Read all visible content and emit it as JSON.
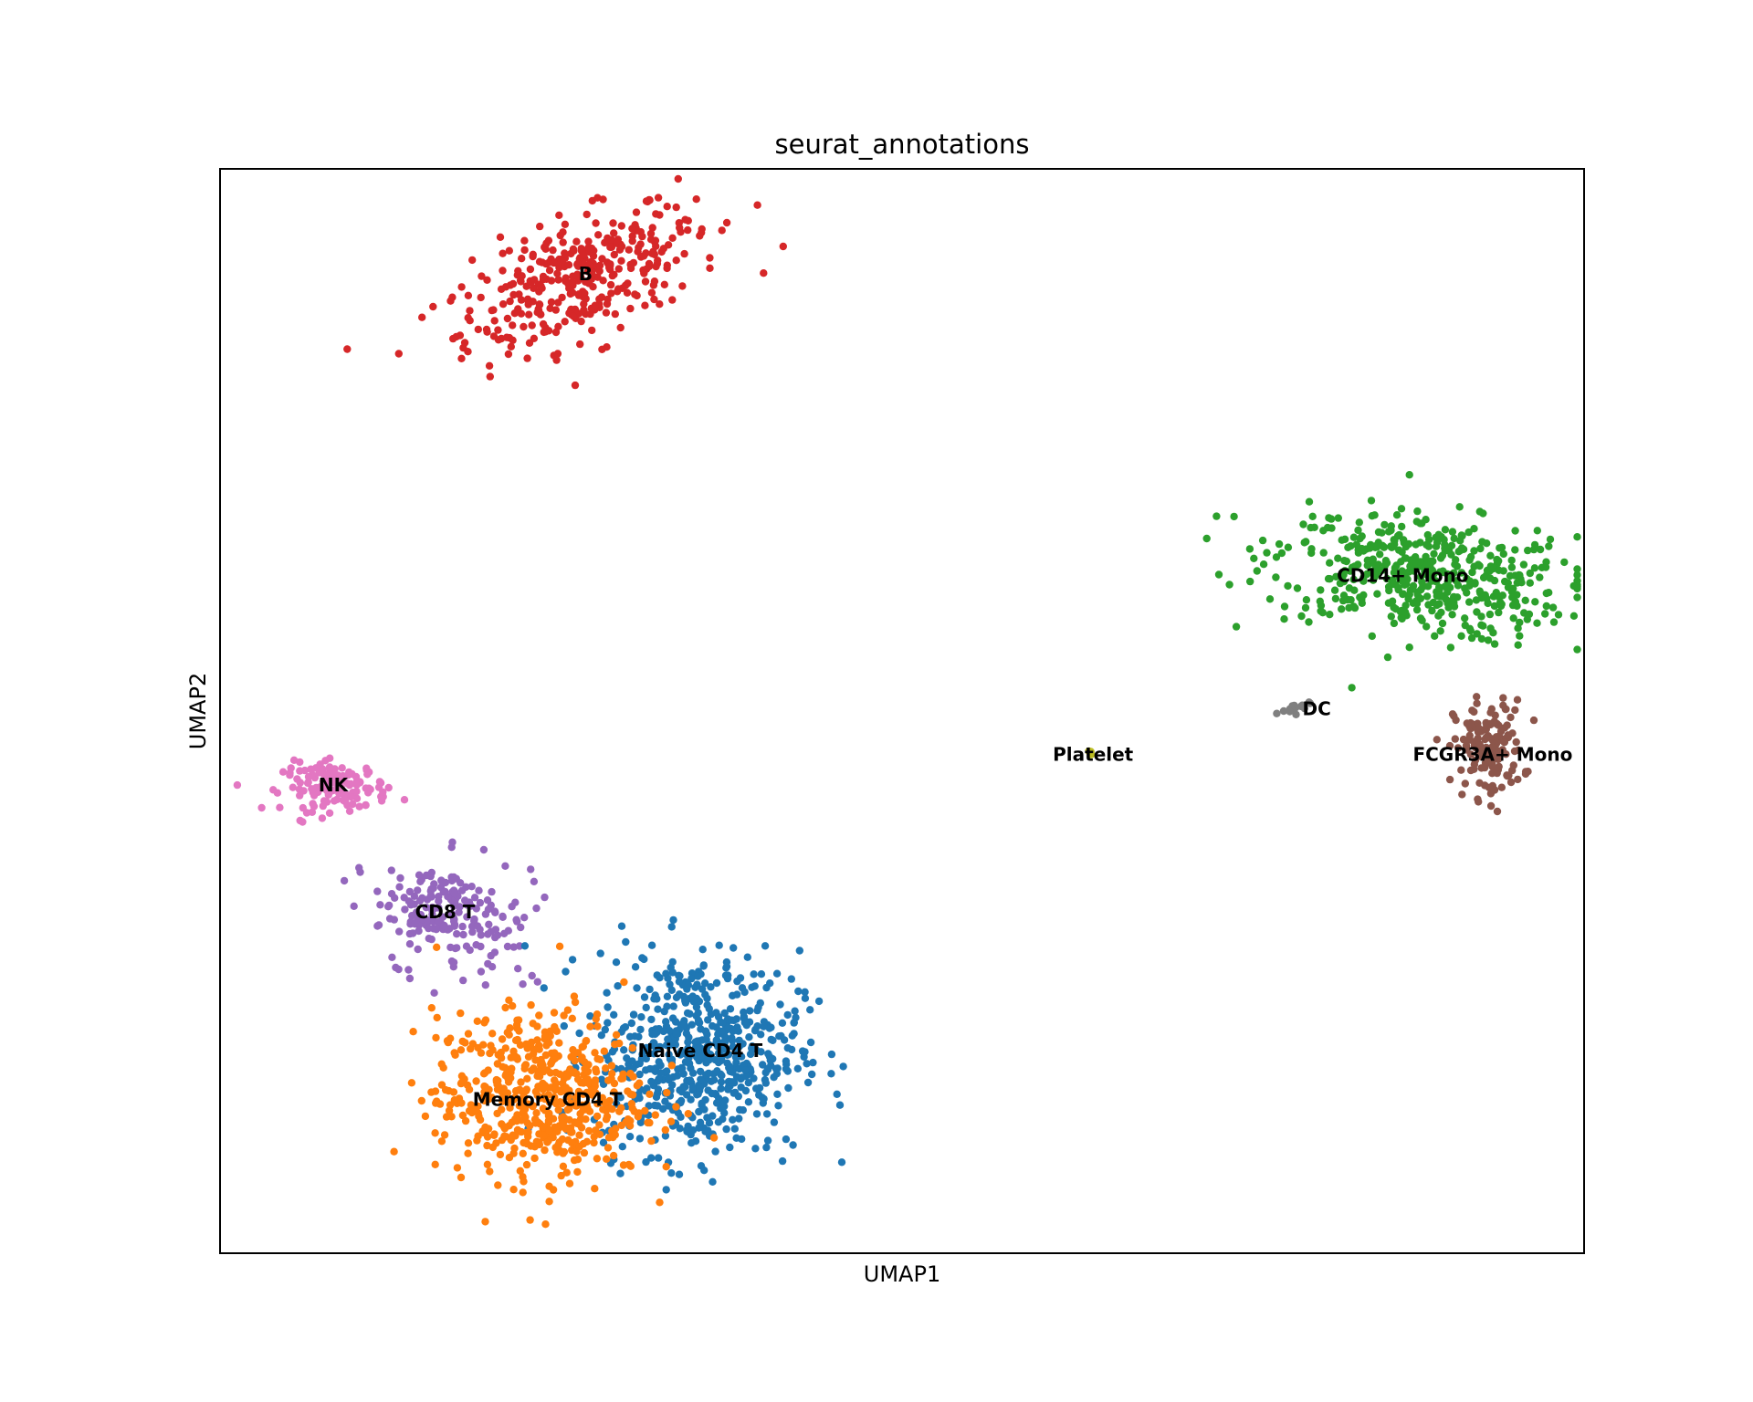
{
  "chart_data": {
    "type": "scatter",
    "title": "seurat_annotations",
    "xlabel": "UMAP1",
    "ylabel": "UMAP2",
    "xlim": [
      0,
      100
    ],
    "ylim": [
      0,
      100
    ],
    "grid": false,
    "legend": "on data",
    "ticks": "none",
    "series": [
      {
        "name": "B",
        "color": "#d62728",
        "center": [
          26.5,
          90.0
        ],
        "spread": [
          9.5,
          4.5
        ],
        "angle": 30,
        "count": 360
      },
      {
        "name": "CD14+ Mono",
        "color": "#2ca02c",
        "center": [
          88.0,
          62.5
        ],
        "spread": [
          10.0,
          5.0
        ],
        "angle": -10,
        "count": 480
      },
      {
        "name": "FCGR3A+ Mono",
        "color": "#8c564b",
        "center": [
          93.0,
          46.5
        ],
        "spread": [
          2.3,
          4.0
        ],
        "angle": 0,
        "count": 150
      },
      {
        "name": "DC",
        "color": "#7f7f7f",
        "center": [
          79.0,
          50.5
        ],
        "spread": [
          1.8,
          0.4
        ],
        "angle": 25,
        "count": 16
      },
      {
        "name": "Platelet",
        "color": "#bcbd22",
        "center": [
          63.8,
          46.0
        ],
        "spread": [
          0.3,
          0.3
        ],
        "angle": 0,
        "count": 3
      },
      {
        "name": "NK",
        "color": "#e377c2",
        "center": [
          8.5,
          43.0
        ],
        "spread": [
          3.5,
          2.0
        ],
        "angle": 0,
        "count": 140
      },
      {
        "name": "CD8 T",
        "color": "#9467bd",
        "center": [
          16.5,
          31.0
        ],
        "spread": [
          5.5,
          4.5
        ],
        "angle": -35,
        "count": 200
      },
      {
        "name": "Naive CD4 T",
        "color": "#1f77b4",
        "center": [
          35.0,
          18.5
        ],
        "spread": [
          6.8,
          8.5
        ],
        "angle": 0,
        "count": 620
      },
      {
        "name": "Memory CD4 T",
        "color": "#ff7f0e",
        "center": [
          23.5,
          14.5
        ],
        "spread": [
          7.0,
          7.0
        ],
        "angle": 0,
        "count": 560
      }
    ],
    "annotations": [
      {
        "text": "B",
        "x": 26.8,
        "y": 90.3
      },
      {
        "text": "CD14+ Mono",
        "x": 86.7,
        "y": 62.5
      },
      {
        "text": "DC",
        "x": 80.4,
        "y": 50.2
      },
      {
        "text": "Platelet",
        "x": 64.0,
        "y": 46.0
      },
      {
        "text": "FCGR3A+ Mono",
        "x": 93.3,
        "y": 46.0
      },
      {
        "text": "NK",
        "x": 8.3,
        "y": 43.2
      },
      {
        "text": "CD8 T",
        "x": 16.5,
        "y": 31.5
      },
      {
        "text": "Naive CD4 T",
        "x": 35.2,
        "y": 18.7
      },
      {
        "text": "Memory CD4 T",
        "x": 24.0,
        "y": 14.2
      }
    ]
  }
}
